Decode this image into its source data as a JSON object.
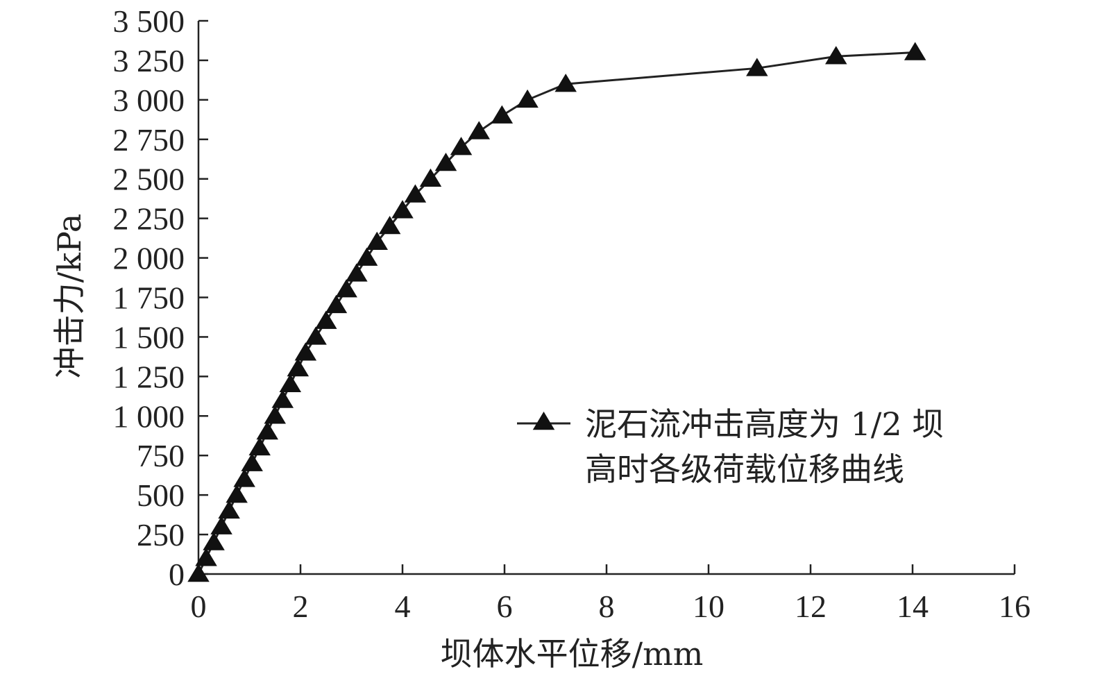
{
  "chart_data": {
    "type": "line",
    "xlabel": "坝体水平位移/mm",
    "ylabel": "冲击力/kPa",
    "xlim": [
      0,
      16
    ],
    "ylim": [
      0,
      3500
    ],
    "xticks": [
      0,
      2,
      4,
      6,
      8,
      10,
      12,
      14,
      16
    ],
    "xtick_labels": [
      "0",
      "2",
      "4",
      "6",
      "8",
      "10",
      "12",
      "14",
      "16"
    ],
    "yticks": [
      0,
      250,
      500,
      750,
      1000,
      1250,
      1500,
      1750,
      2000,
      2250,
      2500,
      2750,
      3000,
      3250,
      3500
    ],
    "ytick_labels": [
      "0",
      "250",
      "500",
      "750",
      "1 000",
      "1 250",
      "1 500",
      "1 750",
      "2 000",
      "2 250",
      "2 500",
      "2 750",
      "3 000",
      "3 250",
      "3 500"
    ],
    "grid": false,
    "legend_position": "center-right",
    "series": [
      {
        "name": "泥石流冲击高度为 1/2 坝高时各级荷载位移曲线",
        "marker": "filled-triangle",
        "color": "#111111",
        "x": [
          0.0,
          0.15,
          0.3,
          0.45,
          0.6,
          0.75,
          0.9,
          1.05,
          1.2,
          1.35,
          1.5,
          1.65,
          1.8,
          1.95,
          2.1,
          2.3,
          2.5,
          2.7,
          2.9,
          3.1,
          3.3,
          3.5,
          3.75,
          4.0,
          4.25,
          4.55,
          4.85,
          5.15,
          5.5,
          5.95,
          6.45,
          7.2,
          10.95,
          12.5,
          14.05
        ],
        "y": [
          0,
          100,
          200,
          300,
          400,
          500,
          600,
          700,
          800,
          900,
          1000,
          1100,
          1200,
          1300,
          1400,
          1500,
          1600,
          1700,
          1800,
          1900,
          2000,
          2100,
          2200,
          2300,
          2400,
          2500,
          2600,
          2700,
          2800,
          2900,
          3000,
          3100,
          3200,
          3275,
          3300
        ]
      }
    ]
  }
}
